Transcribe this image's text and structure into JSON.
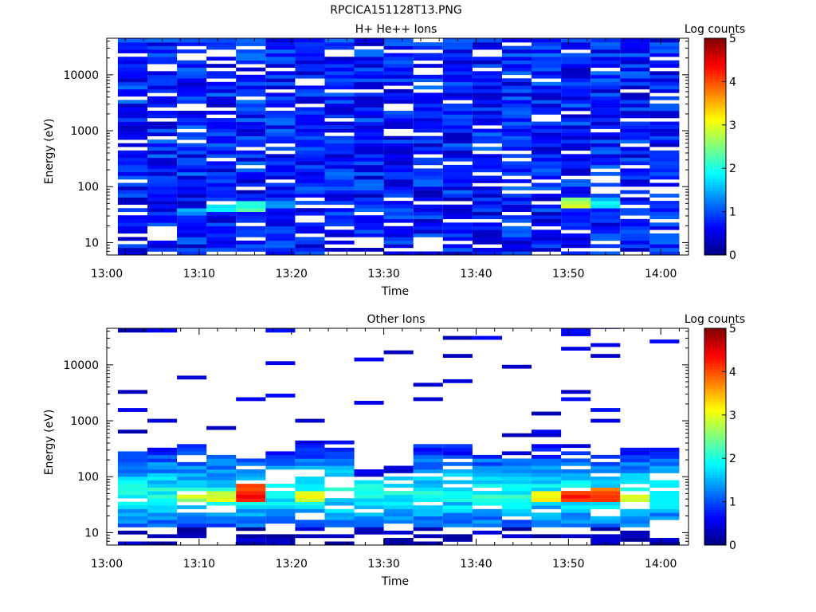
{
  "figure_title": "RPCICA151128T13.PNG",
  "colors": {
    "colormap": [
      "#00007f",
      "#0000ff",
      "#007fff",
      "#00ffff",
      "#7fff7f",
      "#ffff00",
      "#ff7f00",
      "#ff0000",
      "#7f0000"
    ]
  },
  "chart_data": [
    {
      "type": "heatmap",
      "title": "H+ He++ Ions",
      "xlabel": "Time",
      "ylabel": "Energy (eV)",
      "colorbar_label": "Log counts",
      "colorbar_ticks": [
        "0",
        "1",
        "2",
        "3",
        "4",
        "5"
      ],
      "x_ticks": [
        "13:00",
        "13:10",
        "13:20",
        "13:30",
        "13:40",
        "13:50",
        "14:00"
      ],
      "y_ticks": [
        "10",
        "100",
        "1000",
        "10000"
      ],
      "y_scale": "log",
      "ylim": [
        6,
        45000
      ],
      "xlim_minutes": [
        0,
        63
      ],
      "clim": [
        0,
        5
      ],
      "time_bins_minutes": [
        [
          1.2,
          4.4
        ],
        [
          4.4,
          7.6
        ],
        [
          7.6,
          10.8
        ],
        [
          10.8,
          14.0
        ],
        [
          14.0,
          17.2
        ],
        [
          17.2,
          20.4
        ],
        [
          20.4,
          23.6
        ],
        [
          23.6,
          26.8
        ],
        [
          26.8,
          30.0
        ],
        [
          30.0,
          33.2
        ],
        [
          33.2,
          36.4
        ],
        [
          36.4,
          39.6
        ],
        [
          39.6,
          42.8
        ],
        [
          42.8,
          46.0
        ],
        [
          46.0,
          49.2
        ],
        [
          49.2,
          52.4
        ],
        [
          52.4,
          55.6
        ],
        [
          55.6,
          58.8
        ],
        [
          58.8,
          62.0
        ]
      ],
      "features": [
        {
          "time_bin": 4,
          "energy": [
            35,
            55
          ],
          "log_counts": 2.5
        },
        {
          "time_bin": 3,
          "energy": [
            35,
            45
          ],
          "log_counts": 2.2
        },
        {
          "time_bin": 2,
          "energy": [
            30,
            40
          ],
          "log_counts": 1.8
        },
        {
          "time_bin": 5,
          "energy": [
            40,
            55
          ],
          "log_counts": 1.6
        },
        {
          "time_bin": 15,
          "energy": [
            40,
            60
          ],
          "log_counts": 3.0
        },
        {
          "time_bin": 16,
          "energy": [
            40,
            60
          ],
          "log_counts": 2.0
        }
      ]
    },
    {
      "type": "heatmap",
      "title": "Other Ions",
      "xlabel": "Time",
      "ylabel": "Energy (eV)",
      "colorbar_label": "Log counts",
      "colorbar_ticks": [
        "0",
        "1",
        "2",
        "3",
        "4",
        "5"
      ],
      "x_ticks": [
        "13:00",
        "13:10",
        "13:20",
        "13:30",
        "13:40",
        "13:50",
        "14:00"
      ],
      "y_ticks": [
        "10",
        "100",
        "1000",
        "10000"
      ],
      "y_scale": "log",
      "ylim": [
        6,
        45000
      ],
      "xlim_minutes": [
        0,
        63
      ],
      "clim": [
        0,
        5
      ],
      "time_bins_minutes": [
        [
          1.2,
          4.4
        ],
        [
          4.4,
          7.6
        ],
        [
          7.6,
          10.8
        ],
        [
          10.8,
          14.0
        ],
        [
          14.0,
          17.2
        ],
        [
          17.2,
          20.4
        ],
        [
          20.4,
          23.6
        ],
        [
          23.6,
          26.8
        ],
        [
          26.8,
          30.0
        ],
        [
          30.0,
          33.2
        ],
        [
          33.2,
          36.4
        ],
        [
          36.4,
          39.6
        ],
        [
          39.6,
          42.8
        ],
        [
          42.8,
          46.0
        ],
        [
          46.0,
          49.2
        ],
        [
          49.2,
          52.4
        ],
        [
          52.4,
          55.6
        ],
        [
          55.6,
          58.8
        ],
        [
          58.8,
          62.0
        ]
      ],
      "features": [
        {
          "time_bin": 4,
          "energy": [
            35,
            70
          ],
          "log_counts": 4.5
        },
        {
          "time_bin": 3,
          "energy": [
            35,
            55
          ],
          "log_counts": 3.3
        },
        {
          "time_bin": 2,
          "energy": [
            35,
            50
          ],
          "log_counts": 3.0
        },
        {
          "time_bin": 6,
          "energy": [
            35,
            55
          ],
          "log_counts": 3.2
        },
        {
          "time_bin": 15,
          "energy": [
            35,
            55
          ],
          "log_counts": 4.4
        },
        {
          "time_bin": 16,
          "energy": [
            35,
            60
          ],
          "log_counts": 4.2
        },
        {
          "time_bin": 14,
          "energy": [
            35,
            55
          ],
          "log_counts": 3.3
        },
        {
          "time_bin": 17,
          "energy": [
            35,
            50
          ],
          "log_counts": 3.0
        }
      ]
    }
  ]
}
